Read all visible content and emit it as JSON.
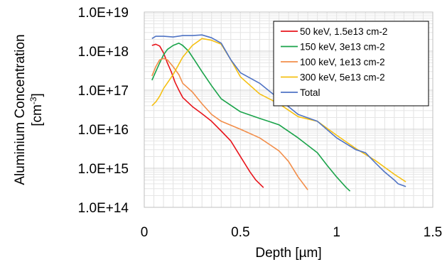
{
  "chart_data": {
    "type": "line",
    "title": "",
    "xlabel": "Depth [µm]",
    "ylabel_line1": "Aluminium Concentration",
    "ylabel_line2": "[cm",
    "ylabel_sup": "-3",
    "ylabel_end": "]",
    "y_scale": "log",
    "xlim": [
      0,
      1.5
    ],
    "ylim": [
      100000000000000.0,
      1e+19
    ],
    "x_ticks": [
      0,
      0.5,
      1,
      1.5
    ],
    "x_tick_labels": [
      "0",
      "0.5",
      "1",
      "1.5"
    ],
    "y_ticks": [
      100000000000000.0,
      1000000000000000.0,
      1e+16,
      1e+17,
      1e+18,
      1e+19
    ],
    "y_tick_labels": [
      "1.0E+14",
      "1.0E+15",
      "1.0E+16",
      "1.0E+17",
      "1.0E+18",
      "1.0E+19"
    ],
    "grid": true,
    "legend_position": "top-right",
    "series": [
      {
        "name": "50 keV, 1.5e13 cm-2",
        "color": "#e8141b",
        "x": [
          0.04,
          0.06,
          0.08,
          0.1,
          0.12,
          0.14,
          0.16,
          0.18,
          0.2,
          0.25,
          0.3,
          0.35,
          0.4,
          0.45,
          0.5,
          0.55,
          0.58,
          0.62
        ],
        "y": [
          1.4e+18,
          1.5e+18,
          1.35e+18,
          9e+17,
          5e+17,
          3e+17,
          1.6e+17,
          1e+17,
          6.5e+16,
          3.8e+16,
          2.5e+16,
          1.6e+16,
          9000000000000000.0,
          5000000000000000.0,
          2000000000000000.0,
          800000000000000.0,
          500000000000000.0,
          320000000000000.0
        ]
      },
      {
        "name": "150 keV, 3e13 cm-2",
        "color": "#1aa34a",
        "x": [
          0.04,
          0.06,
          0.08,
          0.1,
          0.12,
          0.15,
          0.18,
          0.2,
          0.23,
          0.26,
          0.3,
          0.35,
          0.4,
          0.5,
          0.6,
          0.7,
          0.8,
          0.9,
          0.95,
          1.0,
          1.05,
          1.07
        ],
        "y": [
          1.8e+17,
          3e+17,
          5e+17,
          8e+17,
          1.1e+18,
          1.4e+18,
          1.6e+18,
          1.4e+18,
          1e+18,
          6e+17,
          3e+17,
          1.3e+17,
          6e+16,
          2.8e+16,
          1.9e+16,
          1.3e+16,
          6000000000000000.0,
          2500000000000000.0,
          1200000000000000.0,
          600000000000000.0,
          320000000000000.0,
          260000000000000.0
        ]
      },
      {
        "name": "100 keV, 1e13 cm-2",
        "color": "#f28e4a",
        "x": [
          0.04,
          0.06,
          0.08,
          0.1,
          0.12,
          0.15,
          0.18,
          0.2,
          0.25,
          0.3,
          0.35,
          0.4,
          0.5,
          0.6,
          0.7,
          0.75,
          0.8,
          0.85
        ],
        "y": [
          2.3e+17,
          4e+17,
          6e+17,
          6.5e+17,
          6e+17,
          4e+17,
          2.5e+17,
          1.5e+17,
          9e+16,
          4.5e+16,
          2.4e+16,
          1.6e+16,
          1e+16,
          6000000000000000.0,
          2800000000000000.0,
          1500000000000000.0,
          600000000000000.0,
          280000000000000.0
        ]
      },
      {
        "name": "300 keV, 5e13 cm-2",
        "color": "#f5c013",
        "x": [
          0.04,
          0.06,
          0.08,
          0.1,
          0.15,
          0.2,
          0.25,
          0.3,
          0.35,
          0.4,
          0.45,
          0.5,
          0.6,
          0.7,
          0.8,
          0.9,
          1.0,
          1.1,
          1.2,
          1.3,
          1.36
        ],
        "y": [
          4e+16,
          5e+16,
          7e+16,
          1.1e+17,
          2.5e+17,
          7e+17,
          1.4e+18,
          2.1e+18,
          1.9e+18,
          1.5e+18,
          6e+17,
          2.2e+17,
          8e+16,
          4.5e+16,
          2.1e+16,
          1.6e+16,
          7000000000000000.0,
          3200000000000000.0,
          1600000000000000.0,
          700000000000000.0,
          450000000000000.0
        ]
      },
      {
        "name": "Total",
        "color": "#4f73c4",
        "x": [
          0.04,
          0.06,
          0.1,
          0.15,
          0.2,
          0.25,
          0.3,
          0.35,
          0.4,
          0.45,
          0.5,
          0.6,
          0.7,
          0.8,
          0.9,
          1.0,
          1.1,
          1.15,
          1.2,
          1.25,
          1.3,
          1.32,
          1.36
        ],
        "y": [
          2.1e+18,
          2.4e+18,
          2.4e+18,
          2.3e+18,
          2.5e+18,
          2.5e+18,
          2.6e+18,
          2.2e+18,
          1.6e+18,
          6e+17,
          2.8e+17,
          1.5e+17,
          6e+16,
          2.4e+16,
          1.6e+16,
          6000000000000000.0,
          3000000000000000.0,
          2500000000000000.0,
          1400000000000000.0,
          800000000000000.0,
          500000000000000.0,
          400000000000000.0,
          340000000000000.0
        ]
      }
    ]
  }
}
